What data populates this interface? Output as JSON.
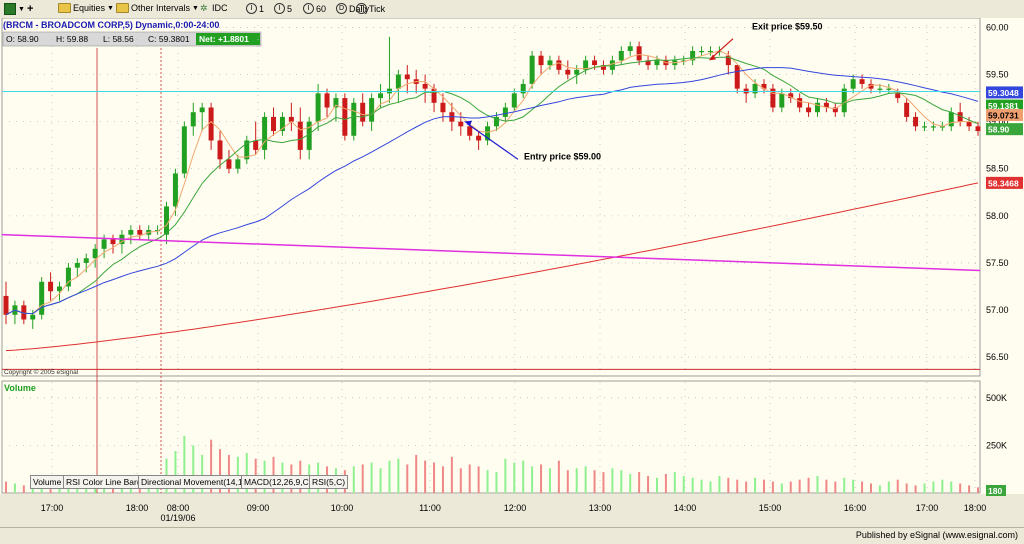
{
  "toolbar": {
    "equities": "Equities",
    "other_intervals": "Other Intervals",
    "idc": "IDC",
    "i1": "1",
    "i5": "5",
    "i60": "60",
    "daily": "Daily",
    "tick": "Tick"
  },
  "title_bar": "(BRCM - BROADCOM CORP,5) Dynamic,0:00-24:00",
  "ohlc": {
    "open": "O: 58.90",
    "high": "H: 59.88",
    "low": "L: 58.56",
    "close": "C: 59.3801",
    "net": "Net: +1.8801"
  },
  "copyright": "Copyright © 2005 eSignal",
  "volume_label": "Volume",
  "annotations": {
    "exit": "Exit price $59.50",
    "entry": "Entry price $59.00"
  },
  "price_badges": [
    "59.3048",
    "59.1381",
    "59.0731",
    "58.90",
    "58.3468"
  ],
  "tabs": [
    "Volume",
    "RSI Color Line Bar()",
    "Directional Movement(14,14)",
    "MACD(12,26,9,C)",
    "RSI(5,C)"
  ],
  "date_label": "01/19/06",
  "published": "Published by eSignal (www.esignal.com)",
  "colors": {
    "up": "#22a022",
    "down": "#cc1a1a",
    "ma_fast": "#f0a870",
    "ma_mid": "#3aa53a",
    "ma_slow": "#3347dd",
    "ma_long": "#e03030",
    "ma_magenta": "#e030e0",
    "cyan": "#40d8e8",
    "vol_up": "#8ff08f",
    "vol_down": "#f08888"
  },
  "chart_data": {
    "type": "candlestick",
    "symbol": "BRCM",
    "interval": "5",
    "x_ticks": [
      "17:00",
      "18:00",
      "08:00",
      "09:00",
      "10:00",
      "11:00",
      "12:00",
      "13:00",
      "14:00",
      "15:00",
      "16:00",
      "17:00",
      "18:00"
    ],
    "y_ticks": [
      56.5,
      57.0,
      57.5,
      58.0,
      58.5,
      59.0,
      59.5,
      60.0
    ],
    "ylim": [
      56.3,
      60.1
    ],
    "volume_ticks": [
      "500K",
      "250K",
      "180"
    ],
    "volume_ylim": [
      0,
      520000
    ],
    "candles": [
      [
        57.15,
        57.3,
        56.85,
        56.95
      ],
      [
        56.95,
        57.1,
        56.85,
        57.05
      ],
      [
        57.05,
        57.1,
        56.85,
        56.9
      ],
      [
        56.9,
        57.0,
        56.8,
        56.95
      ],
      [
        56.95,
        57.35,
        56.9,
        57.3
      ],
      [
        57.3,
        57.4,
        57.1,
        57.2
      ],
      [
        57.2,
        57.3,
        57.1,
        57.25
      ],
      [
        57.25,
        57.5,
        57.2,
        57.45
      ],
      [
        57.45,
        57.55,
        57.35,
        57.5
      ],
      [
        57.5,
        57.6,
        57.4,
        57.55
      ],
      [
        57.55,
        57.7,
        57.45,
        57.65
      ],
      [
        57.65,
        57.8,
        57.55,
        57.75
      ],
      [
        57.75,
        57.8,
        57.6,
        57.7
      ],
      [
        57.7,
        57.85,
        57.6,
        57.8
      ],
      [
        57.8,
        57.9,
        57.7,
        57.85
      ],
      [
        57.85,
        57.9,
        57.75,
        57.8
      ],
      [
        57.8,
        57.9,
        57.75,
        57.85
      ],
      [
        57.85,
        57.9,
        57.8,
        57.85
      ],
      [
        57.8,
        58.15,
        57.7,
        58.1
      ],
      [
        58.1,
        58.5,
        58.0,
        58.45
      ],
      [
        58.45,
        59.0,
        58.4,
        58.95
      ],
      [
        58.95,
        59.2,
        58.85,
        59.1
      ],
      [
        59.1,
        59.2,
        58.9,
        59.15
      ],
      [
        59.15,
        59.2,
        58.7,
        58.8
      ],
      [
        58.8,
        58.9,
        58.5,
        58.6
      ],
      [
        58.6,
        58.7,
        58.45,
        58.5
      ],
      [
        58.5,
        58.65,
        58.45,
        58.6
      ],
      [
        58.6,
        58.85,
        58.55,
        58.8
      ],
      [
        58.8,
        59.0,
        58.65,
        58.7
      ],
      [
        58.7,
        59.1,
        58.6,
        59.05
      ],
      [
        59.05,
        59.15,
        58.85,
        58.9
      ],
      [
        58.9,
        59.1,
        58.85,
        59.05
      ],
      [
        59.05,
        59.2,
        58.9,
        59.0
      ],
      [
        59.0,
        59.15,
        58.6,
        58.7
      ],
      [
        58.7,
        59.05,
        58.6,
        59.0
      ],
      [
        59.0,
        59.4,
        58.9,
        59.3
      ],
      [
        59.3,
        59.35,
        59.05,
        59.15
      ],
      [
        59.15,
        59.3,
        59.0,
        59.25
      ],
      [
        59.25,
        59.3,
        58.8,
        58.85
      ],
      [
        58.85,
        59.25,
        58.8,
        59.2
      ],
      [
        59.2,
        59.3,
        58.95,
        59.0
      ],
      [
        59.0,
        59.3,
        58.9,
        59.25
      ],
      [
        59.25,
        59.4,
        59.15,
        59.3
      ],
      [
        59.3,
        59.9,
        59.2,
        59.35
      ],
      [
        59.35,
        59.55,
        59.2,
        59.5
      ],
      [
        59.5,
        59.6,
        59.3,
        59.45
      ],
      [
        59.45,
        59.55,
        59.3,
        59.4
      ],
      [
        59.4,
        59.5,
        59.2,
        59.35
      ],
      [
        59.35,
        59.4,
        59.1,
        59.2
      ],
      [
        59.2,
        59.3,
        59.0,
        59.1
      ],
      [
        59.1,
        59.2,
        58.9,
        59.0
      ],
      [
        59.0,
        59.1,
        58.85,
        58.95
      ],
      [
        58.95,
        59.0,
        58.8,
        58.85
      ],
      [
        58.85,
        58.9,
        58.7,
        58.8
      ],
      [
        58.8,
        59.0,
        58.75,
        58.95
      ],
      [
        58.95,
        59.1,
        58.9,
        59.05
      ],
      [
        59.05,
        59.2,
        59.0,
        59.15
      ],
      [
        59.15,
        59.35,
        59.1,
        59.3
      ],
      [
        59.3,
        59.45,
        59.25,
        59.4
      ],
      [
        59.4,
        59.75,
        59.35,
        59.7
      ],
      [
        59.7,
        59.75,
        59.5,
        59.6
      ],
      [
        59.6,
        59.7,
        59.55,
        59.65
      ],
      [
        59.65,
        59.7,
        59.5,
        59.55
      ],
      [
        59.55,
        59.65,
        59.45,
        59.5
      ],
      [
        59.5,
        59.6,
        59.4,
        59.55
      ],
      [
        59.55,
        59.7,
        59.5,
        59.65
      ],
      [
        59.65,
        59.7,
        59.55,
        59.6
      ],
      [
        59.6,
        59.65,
        59.5,
        59.55
      ],
      [
        59.55,
        59.7,
        59.5,
        59.65
      ],
      [
        59.65,
        59.8,
        59.6,
        59.75
      ],
      [
        59.75,
        59.85,
        59.7,
        59.8
      ],
      [
        59.8,
        59.85,
        59.6,
        59.65
      ],
      [
        59.65,
        59.7,
        59.55,
        59.6
      ],
      [
        59.6,
        59.7,
        59.55,
        59.65
      ],
      [
        59.65,
        59.7,
        59.55,
        59.6
      ],
      [
        59.6,
        59.7,
        59.55,
        59.65
      ],
      [
        59.65,
        59.7,
        59.6,
        59.65
      ],
      [
        59.65,
        59.8,
        59.6,
        59.75
      ],
      [
        59.75,
        59.8,
        59.7,
        59.75
      ],
      [
        59.75,
        59.8,
        59.7,
        59.75
      ],
      [
        59.75,
        59.8,
        59.7,
        59.75
      ],
      [
        59.7,
        59.75,
        59.5,
        59.6
      ],
      [
        59.6,
        59.6,
        59.3,
        59.35
      ],
      [
        59.35,
        59.4,
        59.2,
        59.3
      ],
      [
        59.3,
        59.45,
        59.25,
        59.4
      ],
      [
        59.4,
        59.45,
        59.3,
        59.35
      ],
      [
        59.35,
        59.4,
        59.1,
        59.15
      ],
      [
        59.15,
        59.35,
        59.1,
        59.3
      ],
      [
        59.3,
        59.35,
        59.2,
        59.25
      ],
      [
        59.25,
        59.3,
        59.1,
        59.15
      ],
      [
        59.15,
        59.2,
        59.05,
        59.1
      ],
      [
        59.1,
        59.25,
        59.05,
        59.2
      ],
      [
        59.2,
        59.25,
        59.1,
        59.15
      ],
      [
        59.15,
        59.2,
        59.05,
        59.1
      ],
      [
        59.1,
        59.4,
        59.05,
        59.35
      ],
      [
        59.35,
        59.5,
        59.3,
        59.45
      ],
      [
        59.45,
        59.5,
        59.35,
        59.4
      ],
      [
        59.4,
        59.45,
        59.3,
        59.35
      ],
      [
        59.35,
        59.4,
        59.3,
        59.35
      ],
      [
        59.35,
        59.4,
        59.3,
        59.35
      ],
      [
        59.3,
        59.35,
        59.2,
        59.25
      ],
      [
        59.2,
        59.25,
        59.0,
        59.05
      ],
      [
        59.05,
        59.1,
        58.9,
        58.95
      ],
      [
        58.95,
        59.0,
        58.9,
        58.95
      ],
      [
        58.95,
        59.0,
        58.9,
        58.95
      ],
      [
        58.95,
        59.0,
        58.9,
        58.95
      ],
      [
        58.95,
        59.15,
        58.9,
        59.1
      ],
      [
        59.1,
        59.2,
        58.95,
        59.0
      ],
      [
        59.0,
        59.05,
        58.9,
        58.95
      ],
      [
        58.95,
        59.0,
        58.85,
        58.9
      ]
    ],
    "volume": [
      60,
      50,
      40,
      55,
      45,
      70,
      40,
      35,
      30,
      50,
      55,
      60,
      45,
      50,
      40,
      30,
      45,
      50,
      180,
      220,
      300,
      250,
      200,
      280,
      230,
      200,
      190,
      210,
      180,
      170,
      190,
      160,
      150,
      170,
      150,
      160,
      140,
      130,
      120,
      140,
      150,
      160,
      130,
      170,
      180,
      150,
      200,
      170,
      160,
      140,
      190,
      130,
      150,
      140,
      120,
      110,
      180,
      160,
      170,
      140,
      150,
      130,
      170,
      120,
      130,
      140,
      120,
      110,
      130,
      120,
      100,
      110,
      90,
      80,
      100,
      110,
      90,
      80,
      70,
      60,
      90,
      80,
      70,
      60,
      80,
      70,
      60,
      50,
      60,
      70,
      80,
      90,
      70,
      60,
      80,
      70,
      60,
      50,
      40,
      60,
      70,
      50,
      40,
      50,
      60,
      70,
      60,
      50,
      40,
      30
    ]
  }
}
